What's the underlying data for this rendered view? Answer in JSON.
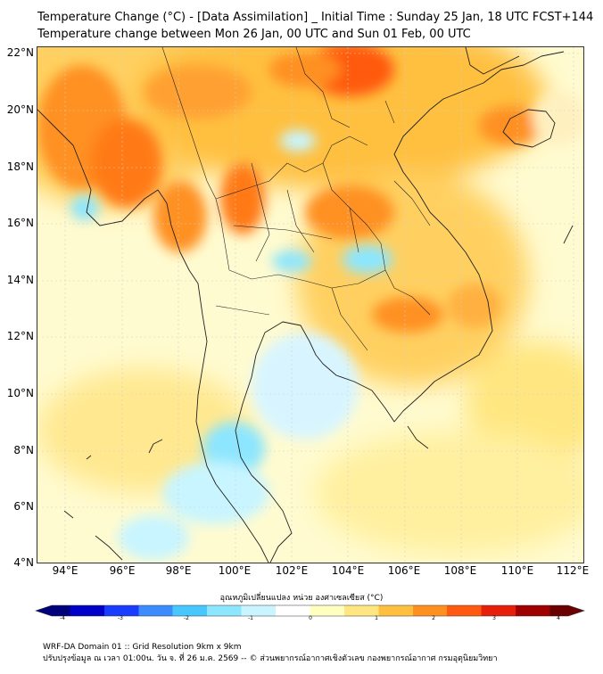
{
  "header": {
    "title": "Temperature Change (°C) - [Data Assimilation] _ Initial Time : Sunday 25 Jan, 18 UTC FCST+144",
    "subtitle": "Temperature change between Mon 26 Jan, 00 UTC and Sun 01 Feb, 00 UTC"
  },
  "axes": {
    "lat_labels": [
      "22°N",
      "20°N",
      "18°N",
      "16°N",
      "14°N",
      "12°N",
      "10°N",
      "8°N",
      "6°N",
      "4°N"
    ],
    "lon_labels": [
      "94°E",
      "96°E",
      "98°E",
      "100°E",
      "102°E",
      "104°E",
      "106°E",
      "108°E",
      "110°E",
      "112°E"
    ]
  },
  "colorbar": {
    "label": "อุณหภูมิเปลี่ยนแปลง หน่วย องศาเซลเซียส (°C)",
    "ticks": [
      "-4",
      "-3",
      "-2",
      "-1",
      "0",
      "1",
      "2",
      "3",
      "4"
    ],
    "colors": [
      "#00007a",
      "#0000c8",
      "#1a3cff",
      "#3c8cff",
      "#46c8ff",
      "#8ce6ff",
      "#c8f5ff",
      "#ffffff",
      "#ffffc0",
      "#ffe680",
      "#ffc040",
      "#ff9020",
      "#ff5a10",
      "#e61e0a",
      "#a00000",
      "#6a0000"
    ]
  },
  "footer": {
    "line1": "WRF-DA Domain 01 :: Grid Resolution 9km x 9km",
    "line2": "ปรับปรุงข้อมูล ณ เวลา 01:00น. วัน จ. ที่ 26 ม.ค. 2569 -- © ส่วนพยากรณ์อากาศเชิงตัวเลข กองพยากรณ์อากาศ กรมอุตุนิยมวิทยา"
  }
}
